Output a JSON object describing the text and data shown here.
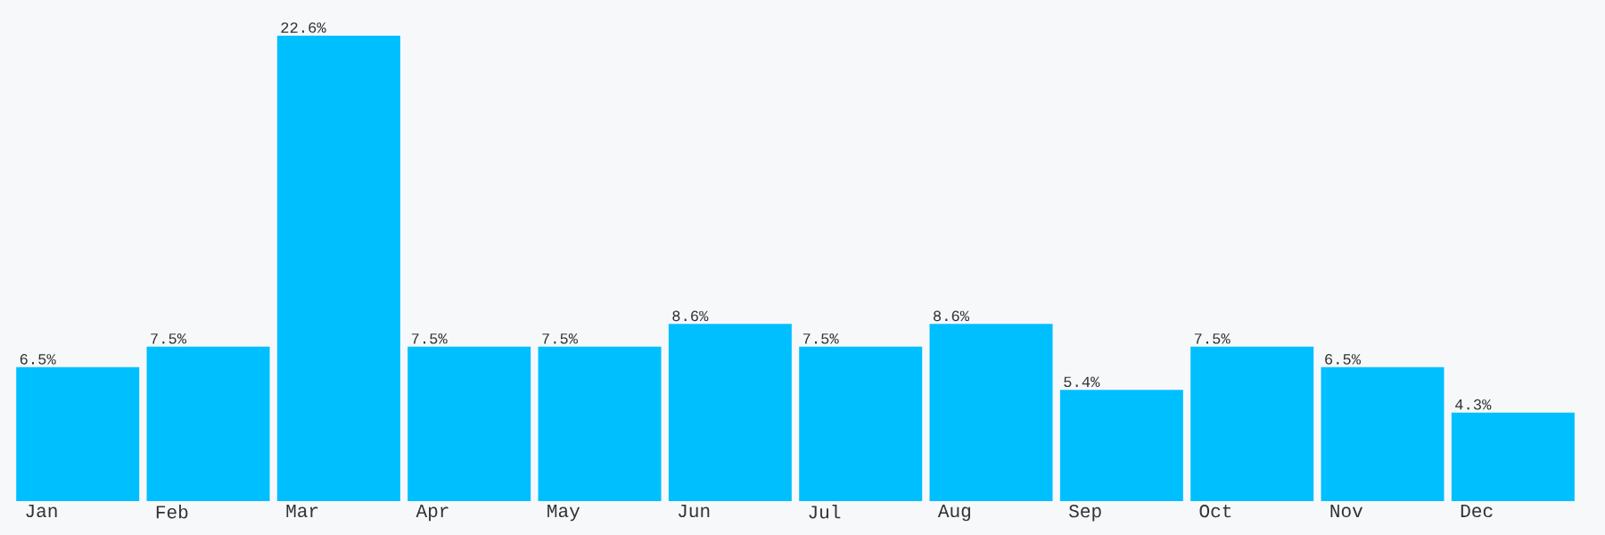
{
  "chart_data": {
    "type": "bar",
    "categories": [
      "Jan",
      "Feb",
      "Mar",
      "Apr",
      "May",
      "Jun",
      "Jul",
      "Aug",
      "Sep",
      "Oct",
      "Nov",
      "Dec"
    ],
    "values": [
      6.5,
      7.5,
      22.6,
      7.5,
      7.5,
      8.6,
      7.5,
      8.6,
      5.4,
      7.5,
      6.5,
      4.3
    ],
    "color": "#00bfff",
    "value_labels": [
      "6.5%",
      "7.5%",
      "22.6%",
      "7.5%",
      "7.5%",
      "8.6%",
      "7.5%",
      "8.6%",
      "5.4%",
      "7.5%",
      "6.5%",
      "4.3%"
    ]
  }
}
